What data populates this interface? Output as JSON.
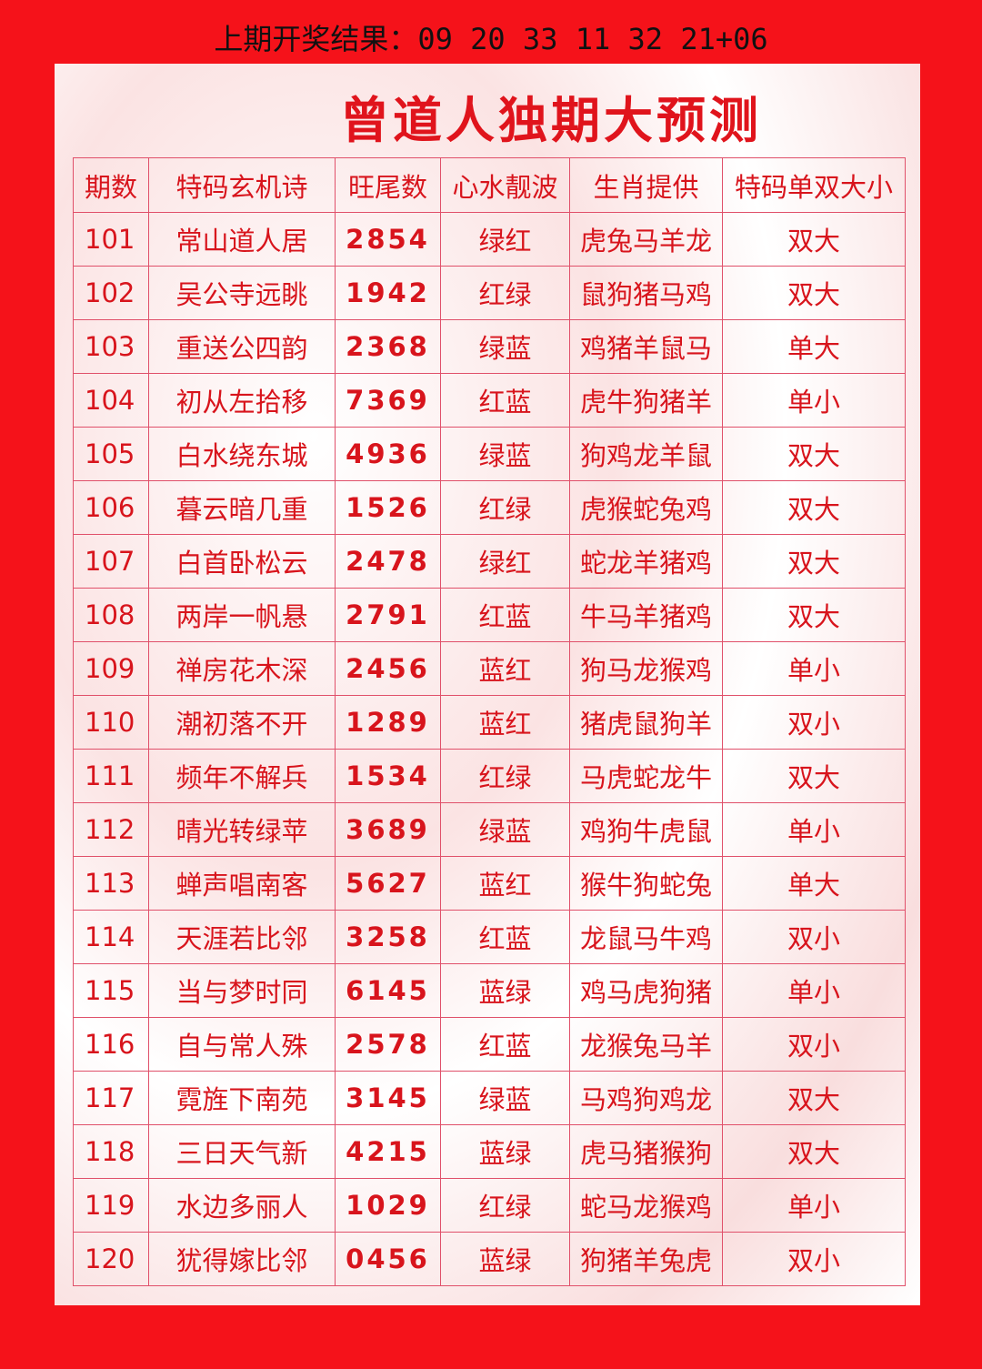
{
  "header": {
    "last_result": "上期开奖结果：09 20 33 11 32 21+06",
    "title": "曾道人独期大预测"
  },
  "table": {
    "columns": [
      "期数",
      "特码玄机诗",
      "旺尾数",
      "心水靓波",
      "生肖提供",
      "特码单双大小"
    ],
    "rows": [
      [
        "101",
        "常山道人居",
        "2854",
        "绿红",
        "虎兔马羊龙",
        "双大"
      ],
      [
        "102",
        "吴公寺远眺",
        "1942",
        "红绿",
        "鼠狗猪马鸡",
        "双大"
      ],
      [
        "103",
        "重送公四韵",
        "2368",
        "绿蓝",
        "鸡猪羊鼠马",
        "单大"
      ],
      [
        "104",
        "初从左拾移",
        "7369",
        "红蓝",
        "虎牛狗猪羊",
        "单小"
      ],
      [
        "105",
        "白水绕东城",
        "4936",
        "绿蓝",
        "狗鸡龙羊鼠",
        "双大"
      ],
      [
        "106",
        "暮云暗几重",
        "1526",
        "红绿",
        "虎猴蛇兔鸡",
        "双大"
      ],
      [
        "107",
        "白首卧松云",
        "2478",
        "绿红",
        "蛇龙羊猪鸡",
        "双大"
      ],
      [
        "108",
        "两岸一帆悬",
        "2791",
        "红蓝",
        "牛马羊猪鸡",
        "双大"
      ],
      [
        "109",
        "禅房花木深",
        "2456",
        "蓝红",
        "狗马龙猴鸡",
        "单小"
      ],
      [
        "110",
        "潮初落不开",
        "1289",
        "蓝红",
        "猪虎鼠狗羊",
        "双小"
      ],
      [
        "111",
        "频年不解兵",
        "1534",
        "红绿",
        "马虎蛇龙牛",
        "双大"
      ],
      [
        "112",
        "晴光转绿苹",
        "3689",
        "绿蓝",
        "鸡狗牛虎鼠",
        "单小"
      ],
      [
        "113",
        "蝉声唱南客",
        "5627",
        "蓝红",
        "猴牛狗蛇兔",
        "单大"
      ],
      [
        "114",
        "天涯若比邻",
        "3258",
        "红蓝",
        "龙鼠马牛鸡",
        "双小"
      ],
      [
        "115",
        "当与梦时同",
        "6145",
        "蓝绿",
        "鸡马虎狗猪",
        "单小"
      ],
      [
        "116",
        "自与常人殊",
        "2578",
        "红蓝",
        "龙猴兔马羊",
        "双小"
      ],
      [
        "117",
        "霓旌下南苑",
        "3145",
        "绿蓝",
        "马鸡狗鸡龙",
        "双大"
      ],
      [
        "118",
        "三日天气新",
        "4215",
        "蓝绿",
        "虎马猪猴狗",
        "双大"
      ],
      [
        "119",
        "水边多丽人",
        "1029",
        "红绿",
        "蛇马龙猴鸡",
        "单小"
      ],
      [
        "120",
        "犹得嫁比邻",
        "0456",
        "蓝绿",
        "狗猪羊兔虎",
        "双小"
      ]
    ]
  }
}
